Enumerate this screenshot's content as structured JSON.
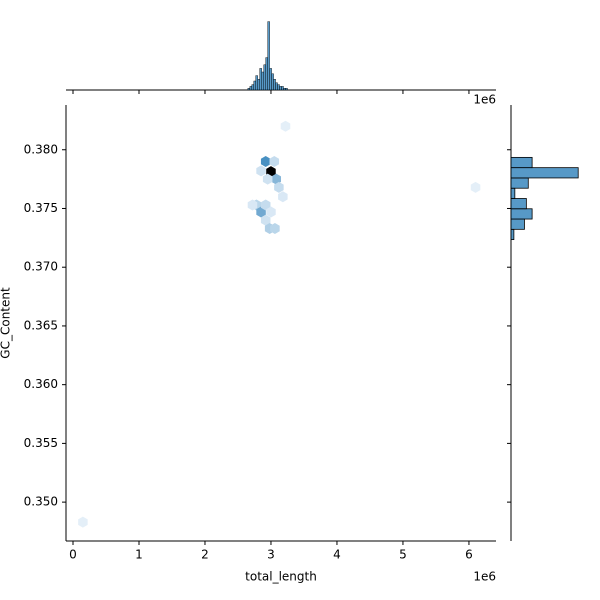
{
  "chart_data": {
    "type": "hexbin",
    "xlabel": "total_length",
    "ylabel": "GC_Content",
    "x_offset_label": "1e6",
    "xlim": [
      -0.106,
      6.41
    ],
    "ylim": [
      0.34669,
      0.38381
    ],
    "xticks": [
      0,
      1,
      2,
      3,
      4,
      5,
      6
    ],
    "yticks": [
      {
        "value": 0.35,
        "label": "0.350"
      },
      0.355,
      {
        "value": 0.36,
        "label": "0.360"
      },
      0.365,
      {
        "value": 0.37,
        "label": "0.370"
      },
      0.375,
      {
        "value": 0.38,
        "label": "0.380"
      }
    ],
    "color": "#1f77b4",
    "x": [
      3.0,
      2.92,
      3.05,
      2.85,
      3.08,
      3.12,
      3.18,
      2.78,
      2.85,
      2.92,
      2.92,
      2.98,
      3.06,
      2.72,
      3.0,
      3.22,
      0.15,
      6.1,
      2.95
    ],
    "y": [
      0.37814,
      0.379,
      0.379,
      0.3782,
      0.3775,
      0.3768,
      0.376,
      0.3753,
      0.3747,
      0.3753,
      0.374,
      0.3733,
      0.3733,
      0.3753,
      0.3747,
      0.382,
      0.3483,
      0.3768,
      0.3775
    ],
    "counts": [
      40,
      16,
      4,
      3,
      10,
      4,
      2,
      5,
      12,
      4,
      3,
      6,
      5,
      2,
      2,
      1,
      1,
      1,
      3
    ],
    "top_hist": {
      "bins": [
        2.65,
        2.68,
        2.71,
        2.74,
        2.77,
        2.8,
        2.83,
        2.86,
        2.89,
        2.92,
        2.95,
        2.98,
        3.01,
        3.04,
        3.07,
        3.1,
        3.13,
        3.16,
        3.19,
        3.22,
        3.25
      ],
      "counts": [
        1,
        2,
        3,
        5,
        8,
        6,
        12,
        10,
        14,
        18,
        38,
        12,
        9,
        6,
        4,
        3,
        2,
        2,
        1,
        1
      ],
      "ylim": [
        0,
        40
      ]
    },
    "right_hist": {
      "bins": [
        0.37235,
        0.373225,
        0.3741,
        0.374975,
        0.37585,
        0.376725,
        0.3776,
        0.378475,
        0.37935
      ],
      "counts": [
        3,
        14,
        22,
        16,
        4,
        18,
        70,
        22
      ],
      "xlim": [
        0,
        75
      ]
    }
  }
}
